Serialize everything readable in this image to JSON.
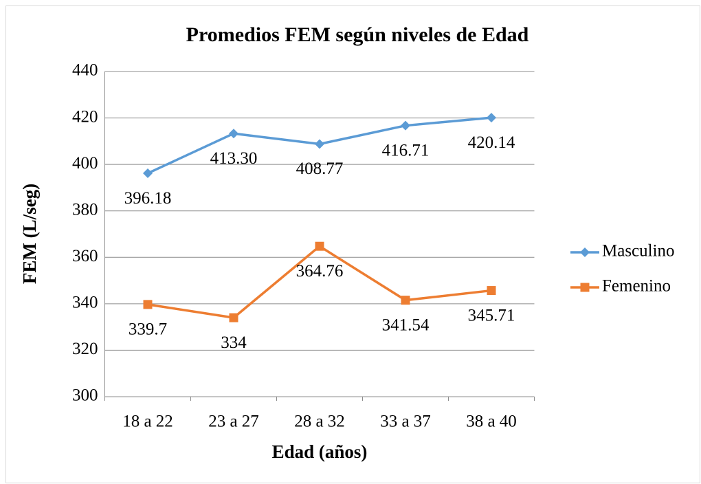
{
  "chart_data": {
    "type": "line",
    "title": "Promedios FEM según niveles de Edad",
    "x_label": "Edad (años)",
    "y_label": "FEM (L/seg)",
    "categories": [
      "18 a 22",
      "23 a 27",
      "28 a 32",
      "33 a 37",
      "38 a 40"
    ],
    "series": [
      {
        "name": "Masculino",
        "color": "#5b9bd5",
        "marker": "diamond",
        "values": [
          396.18,
          413.3,
          408.77,
          416.71,
          420.14
        ],
        "value_labels": [
          "396.18",
          "413.30",
          "408.77",
          "416.71",
          "420.14"
        ]
      },
      {
        "name": "Femenino",
        "color": "#ed7d31",
        "marker": "square",
        "values": [
          339.7,
          334,
          364.76,
          341.54,
          345.71
        ]
      }
    ],
    "ylim": [
      300,
      440
    ],
    "yticks": [
      300,
      320,
      340,
      360,
      380,
      400,
      420,
      440
    ],
    "grid": true,
    "legend": "right"
  }
}
